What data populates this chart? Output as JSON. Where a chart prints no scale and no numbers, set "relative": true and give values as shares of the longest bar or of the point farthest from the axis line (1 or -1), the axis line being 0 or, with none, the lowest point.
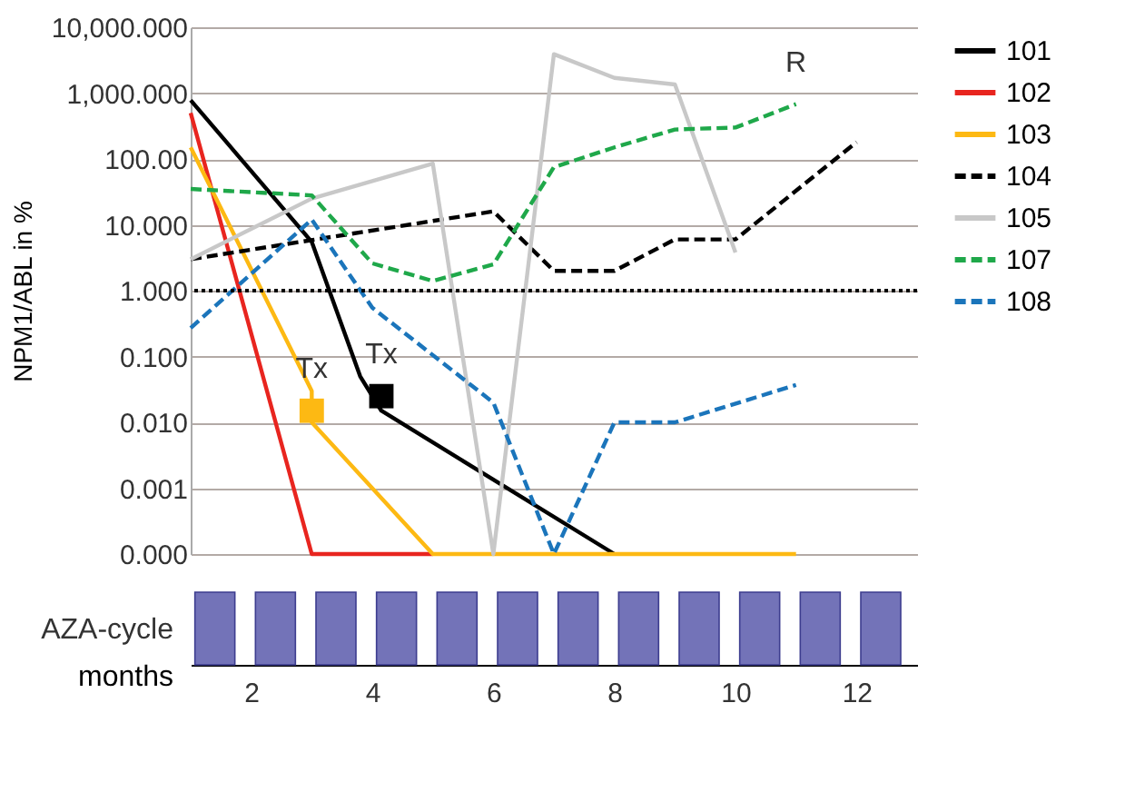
{
  "chart_data": [
    {
      "type": "line",
      "ylabel": "NPM1/ABL in %",
      "log": "y",
      "xlim": [
        1,
        13
      ],
      "ylim": [
        0.0001,
        10000
      ],
      "yticks": [
        {
          "value": 0.0001,
          "label": "0.000"
        },
        {
          "value": 0.001,
          "label": "0.001"
        },
        {
          "value": 0.01,
          "label": "0.010"
        },
        {
          "value": 0.1,
          "label": "0.100"
        },
        {
          "value": 1,
          "label": "1.000"
        },
        {
          "value": 10,
          "label": "10.000"
        },
        {
          "value": 100,
          "label": "100.00"
        },
        {
          "value": 1000,
          "label": "1,000.000"
        },
        {
          "value": 10000,
          "label": "10,000.000"
        }
      ],
      "tick_labels": "y",
      "grid": "y",
      "legend": "right",
      "series": [
        {
          "name": "101",
          "color": "#000000",
          "line_style": "solid",
          "x": [
            1,
            3,
            3.8,
            4.15,
            8
          ],
          "values": [
            780,
            5.5,
            0.05,
            0.015,
            0.0001
          ]
        },
        {
          "name": "102",
          "color": "#e8251f",
          "line_style": "solid",
          "x": [
            1,
            3,
            5
          ],
          "values": [
            500,
            0.0001,
            0.0001
          ]
        },
        {
          "name": "103",
          "color": "#fdb913",
          "line_style": "solid",
          "x": [
            1,
            3,
            3,
            5,
            11
          ],
          "values": [
            150,
            0.03,
            0.01,
            0.0001,
            0.0001
          ]
        },
        {
          "name": "104",
          "color": "#000000",
          "line_style": "dashed",
          "x": [
            1,
            6,
            7,
            8,
            9,
            10,
            12
          ],
          "values": [
            3,
            16,
            2,
            2,
            6,
            6,
            180
          ]
        },
        {
          "name": "105",
          "color": "#c8c8c8",
          "line_style": "solid",
          "x": [
            1,
            3,
            5,
            6,
            7,
            8,
            9,
            10
          ],
          "values": [
            3,
            25,
            85,
            0.0001,
            3900,
            1700,
            1350,
            3.8
          ]
        },
        {
          "name": "107",
          "color": "#1fa84a",
          "line_style": "dashed",
          "x": [
            1,
            3,
            4,
            5,
            6,
            7,
            8,
            9,
            10,
            11
          ],
          "values": [
            35,
            28,
            2.6,
            1.4,
            2.5,
            75,
            150,
            280,
            300,
            680
          ]
        },
        {
          "name": "108",
          "color": "#1b75bb",
          "line_style": "dashed",
          "x": [
            1,
            3,
            4,
            6,
            7,
            8,
            9,
            11
          ],
          "values": [
            0.27,
            12,
            0.55,
            0.02,
            0.0001,
            0.01,
            0.01,
            0.037
          ]
        },
        {
          "type": "scatter",
          "marker": "square",
          "color": "#fdb913",
          "x": [
            3
          ],
          "values": [
            0.015
          ]
        },
        {
          "type": "scatter",
          "marker": "square",
          "color": "#000000",
          "x": [
            4.15
          ],
          "values": [
            0.025
          ]
        }
      ],
      "ref_lines": [
        {
          "axis": "y",
          "value": 1,
          "color": "#000000",
          "line_style": "dotted"
        }
      ],
      "annotations": [
        {
          "text": "Tx",
          "x": 3,
          "y": 0.015
        },
        {
          "text": "Tx",
          "x": 4.15,
          "y": 0.025
        },
        {
          "text": "R",
          "x": 11,
          "y": 680
        }
      ]
    },
    {
      "type": "bar",
      "relative": true,
      "ylabel": "AZA-cycle",
      "xlabel": "months",
      "xlim": [
        1,
        13
      ],
      "xticks": [
        2,
        4,
        6,
        8,
        10,
        12
      ],
      "color": "#7373b8",
      "x": [
        1.4,
        2.4,
        3.4,
        4.4,
        5.4,
        6.4,
        7.4,
        8.4,
        9.4,
        10.4,
        11.4,
        12.4
      ],
      "values": [
        1,
        1,
        1,
        1,
        1,
        1,
        1,
        1,
        1,
        1,
        1,
        1
      ]
    }
  ]
}
